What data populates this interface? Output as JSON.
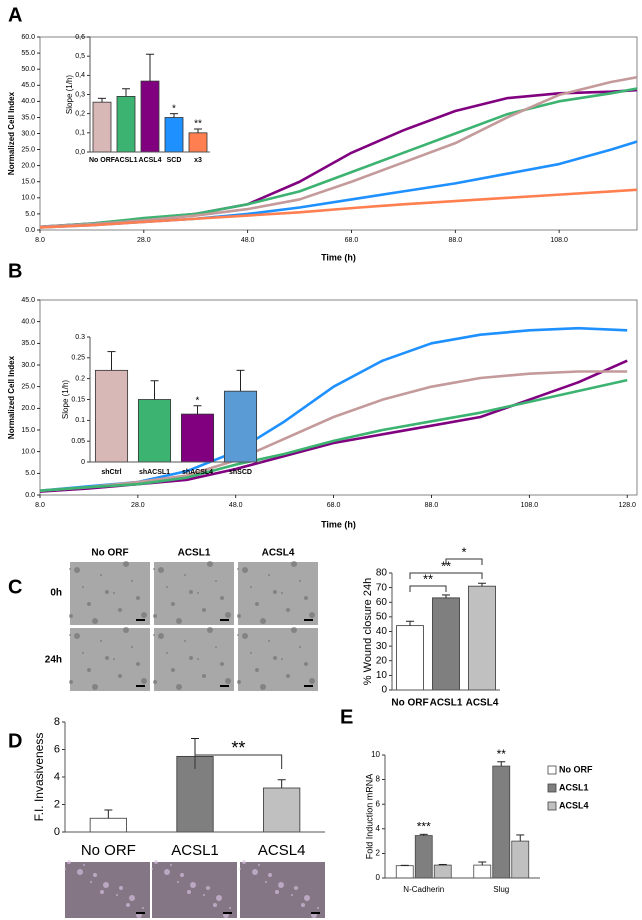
{
  "chart_data": [
    {
      "type": "line",
      "panel_label": "A",
      "x_label": "Time (h)",
      "y_label": "Normalized Cell Index",
      "x": [
        8,
        18,
        28,
        38,
        48,
        58,
        68,
        78,
        88,
        98,
        108,
        118,
        123
      ],
      "xlim": [
        8,
        123
      ],
      "xticks": [
        {
          "value": 8,
          "label": "8.0"
        },
        {
          "value": 28,
          "label": "28.0"
        },
        {
          "value": 48,
          "label": "48.0"
        },
        {
          "value": 68,
          "label": "68.0"
        },
        {
          "value": 88,
          "label": "88.0"
        },
        {
          "value": 108,
          "label": "108.0"
        }
      ],
      "ylim": [
        0,
        60
      ],
      "yticks": [
        {
          "value": 0,
          "label": "0.0"
        },
        {
          "value": 5,
          "label": "5.0"
        },
        {
          "value": 10,
          "label": "10.0"
        },
        {
          "value": 15,
          "label": "15.0"
        },
        {
          "value": 20,
          "label": "20.0"
        },
        {
          "value": 25,
          "label": "25.0"
        },
        {
          "value": 30,
          "label": "30.0"
        },
        {
          "value": 35,
          "label": "35.0"
        },
        {
          "value": 40,
          "label": "40.0"
        },
        {
          "value": 45,
          "label": "45.0"
        },
        {
          "value": 50,
          "label": "50.0"
        },
        {
          "value": 55,
          "label": "55.0"
        },
        {
          "value": 60,
          "label": "60.0"
        }
      ],
      "series": [
        {
          "color": "#800080",
          "values": [
            1,
            2,
            3.5,
            5,
            8,
            15,
            24,
            31,
            37,
            41,
            42.5,
            43,
            43.5
          ]
        },
        {
          "color": "#3cb371",
          "values": [
            1,
            2,
            3.7,
            5,
            8,
            12,
            18,
            24,
            30,
            36,
            40,
            42.5,
            44
          ]
        },
        {
          "color": "#c49a9a",
          "values": [
            1,
            1.8,
            3,
            4.5,
            6.5,
            9.5,
            15,
            21,
            27,
            35,
            42,
            46,
            47.5
          ]
        },
        {
          "color": "#1e90ff",
          "values": [
            0.8,
            1.5,
            2.5,
            3.5,
            5,
            7,
            9.5,
            12,
            14.5,
            17.5,
            20.5,
            25,
            27.5
          ]
        },
        {
          "color": "#ff7f50",
          "values": [
            0.8,
            1.5,
            2.5,
            3.5,
            4.5,
            5.5,
            6.8,
            8,
            9,
            10,
            11,
            12,
            12.5
          ]
        }
      ]
    },
    {
      "type": "bar",
      "y_label": "Slope (1/h)",
      "categories": [
        "No ORF",
        "ACSL1",
        "ACSL4",
        "SCD",
        "x3"
      ],
      "values": [
        0.26,
        0.29,
        0.37,
        0.18,
        0.1
      ],
      "errors": [
        0.02,
        0.04,
        0.14,
        0.02,
        0.02
      ],
      "colors": [
        "#d8b7b7",
        "#3cb371",
        "#800080",
        "#1e90ff",
        "#ff7f50"
      ],
      "annotations": [
        null,
        null,
        null,
        "*",
        "**"
      ],
      "ylim": [
        0,
        0.6
      ],
      "yticks": [
        {
          "value": 0,
          "label": "0,0"
        },
        {
          "value": 0.1,
          "label": "0,1"
        },
        {
          "value": 0.2,
          "label": "0,2"
        },
        {
          "value": 0.3,
          "label": "0,3"
        },
        {
          "value": 0.4,
          "label": "0,4"
        },
        {
          "value": 0.5,
          "label": "0,5"
        },
        {
          "value": 0.6,
          "label": "0,6"
        }
      ]
    },
    {
      "type": "line",
      "panel_label": "B",
      "x_label": "Time (h)",
      "y_label": "Normalized Cell Index",
      "x": [
        8,
        18,
        28,
        38,
        48,
        58,
        68,
        78,
        88,
        98,
        108,
        118,
        128
      ],
      "xlim": [
        8,
        130
      ],
      "xticks": [
        {
          "value": 8,
          "label": "8.0"
        },
        {
          "value": 28,
          "label": "28.0"
        },
        {
          "value": 48,
          "label": "48.0"
        },
        {
          "value": 68,
          "label": "68.0"
        },
        {
          "value": 88,
          "label": "88.0"
        },
        {
          "value": 108,
          "label": "108.0"
        },
        {
          "value": 128,
          "label": "128.0"
        }
      ],
      "ylim": [
        0,
        45
      ],
      "yticks": [
        {
          "value": 0,
          "label": "0.0"
        },
        {
          "value": 5,
          "label": "5.0"
        },
        {
          "value": 10,
          "label": "10.0"
        },
        {
          "value": 15,
          "label": "15.0"
        },
        {
          "value": 20,
          "label": "20.0"
        },
        {
          "value": 25,
          "label": "25.0"
        },
        {
          "value": 30,
          "label": "30.0"
        },
        {
          "value": 35,
          "label": "35.0"
        },
        {
          "value": 40,
          "label": "40.0"
        },
        {
          "value": 45,
          "label": "45.0"
        }
      ],
      "series": [
        {
          "color": "#1e90ff",
          "values": [
            1,
            2,
            3,
            5.5,
            10,
            17,
            25,
            31,
            35,
            37,
            38,
            38.5,
            38
          ]
        },
        {
          "color": "#800080",
          "values": [
            0.8,
            1.5,
            2.5,
            3.5,
            6,
            9,
            12,
            14,
            16,
            18,
            22,
            26,
            31
          ]
        },
        {
          "color": "#c49a9a",
          "values": [
            1,
            1.8,
            3,
            4.5,
            8,
            13,
            18,
            22,
            25,
            27,
            28,
            28.5,
            28.5
          ]
        },
        {
          "color": "#3cb371",
          "values": [
            1,
            1.8,
            2.5,
            4,
            7,
            9.5,
            12.5,
            15,
            17,
            19,
            21.5,
            24,
            26.5
          ]
        }
      ]
    },
    {
      "type": "bar",
      "y_label": "Slope (1/h)",
      "categories": [
        "shCtrl",
        "shACSL1",
        "shACSL4",
        "shSCD"
      ],
      "values": [
        0.22,
        0.15,
        0.115,
        0.17
      ],
      "errors": [
        0.045,
        0.045,
        0.02,
        0.05
      ],
      "colors": [
        "#d8b7b7",
        "#3cb371",
        "#800080",
        "#5b9bd5"
      ],
      "annotations": [
        null,
        null,
        "*",
        null
      ],
      "ylim": [
        0,
        0.3
      ],
      "yticks": [
        0,
        0.05,
        0.1,
        0.15,
        0.2,
        0.25,
        0.3
      ]
    },
    {
      "type": "bar",
      "panel_label": "C",
      "y_label": "% Wound closure 24h",
      "image_columns": [
        "No ORF",
        "ACSL1",
        "ACSL4"
      ],
      "image_rows": [
        "0h",
        "24h"
      ],
      "categories": [
        "No ORF",
        "ACSL1",
        "ACSL4"
      ],
      "values": [
        44,
        63,
        71
      ],
      "errors": [
        3,
        2,
        2
      ],
      "colors": [
        "#ffffff",
        "#7f7f7f",
        "#c0c0c0"
      ],
      "brackets": [
        "**",
        "**",
        "*"
      ],
      "ylim": [
        0,
        80
      ],
      "yticks": [
        0,
        10,
        20,
        30,
        40,
        50,
        60,
        70,
        80
      ]
    },
    {
      "type": "bar",
      "panel_label": "D",
      "y_label": "F.I. Invasiveness",
      "categories": [
        "No ORF",
        "ACSL1",
        "ACSL4"
      ],
      "values": [
        1,
        5.5,
        3.2
      ],
      "errors": [
        0.6,
        1.3,
        0.6
      ],
      "colors": [
        "#ffffff",
        "#7f7f7f",
        "#c0c0c0"
      ],
      "brackets": [
        "**"
      ],
      "ylim": [
        0,
        8
      ],
      "yticks": [
        0,
        2,
        4,
        6,
        8
      ]
    },
    {
      "type": "grouped_bar",
      "panel_label": "E",
      "y_label": "Fold Induction mRNA",
      "categories": [
        "N-Cadherin",
        "Slug"
      ],
      "series": [
        {
          "name": "No ORF",
          "color": "#ffffff",
          "values": [
            1,
            1.05
          ],
          "errors": [
            0.03,
            0.25
          ]
        },
        {
          "name": "ACSL1",
          "color": "#7f7f7f",
          "values": [
            3.45,
            9.1
          ],
          "errors": [
            0.1,
            0.35
          ],
          "annotations": [
            "***",
            "**"
          ]
        },
        {
          "name": "ACSL4",
          "color": "#c0c0c0",
          "values": [
            1.05,
            3
          ],
          "errors": [
            0.05,
            0.5
          ]
        }
      ],
      "ylim": [
        0,
        10
      ],
      "yticks": [
        0,
        2,
        4,
        6,
        8,
        10
      ]
    }
  ]
}
